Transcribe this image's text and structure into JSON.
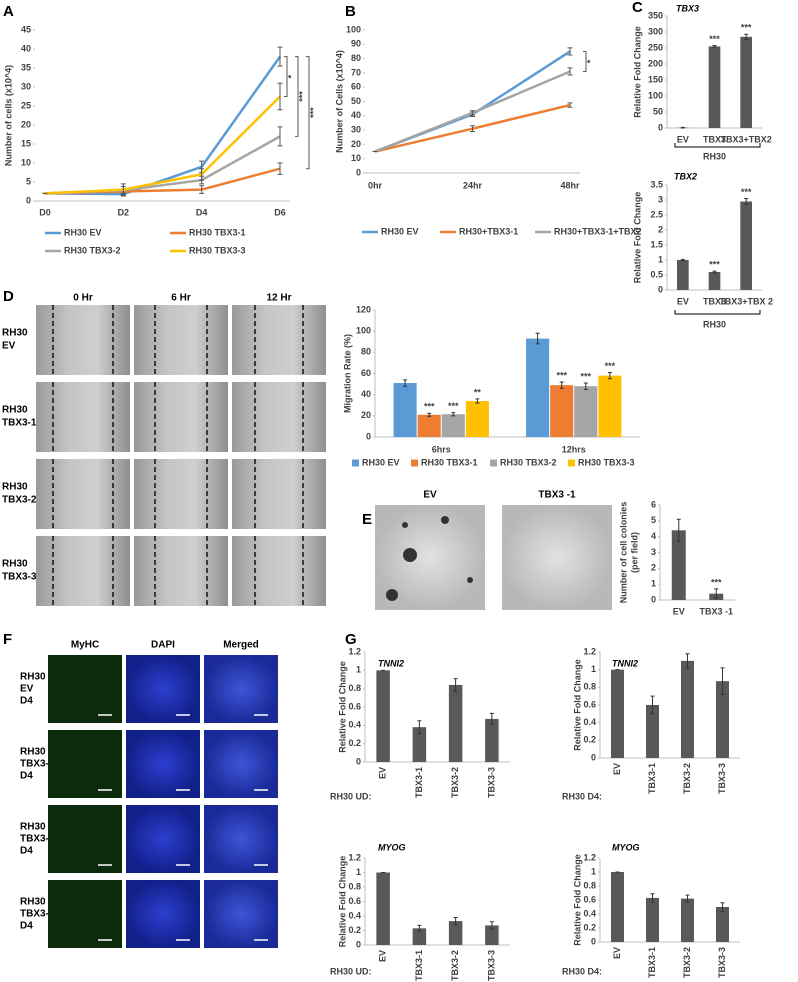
{
  "panel_letters": [
    "A",
    "B",
    "C",
    "D",
    "E",
    "F",
    "G"
  ],
  "scratch_assay": {
    "columns": [
      "0 Hr",
      "6 Hr",
      "12 Hr"
    ],
    "rows": [
      [
        "RH30",
        "EV"
      ],
      [
        "RH30",
        "TBX3-1"
      ],
      [
        "RH30",
        "TBX3-2"
      ],
      [
        "RH30",
        "TBX3-3"
      ]
    ]
  },
  "colony_images": {
    "columns": [
      "EV",
      "TBX3 -1"
    ]
  },
  "immunofluorescence": {
    "columns": [
      "MyHC",
      "DAPI",
      "Merged"
    ],
    "rows": [
      [
        "RH30",
        "EV",
        "D4"
      ],
      [
        "RH30",
        "TBX3-1",
        "D4"
      ],
      [
        "RH30",
        "TBX3-2",
        "D4"
      ],
      [
        "RH30",
        "TBX3-3",
        "D4"
      ]
    ]
  },
  "chart_data": [
    {
      "type": "line",
      "ylabel": "Number of cells (x10^4)",
      "categories": [
        "D0",
        "D2",
        "D4",
        "D6"
      ],
      "series": [
        {
          "name": "RH30 EV",
          "color": "#5b9bd5",
          "values": [
            2,
            1.8,
            9,
            38
          ],
          "errors": [
            0,
            0.5,
            1.5,
            2.5
          ]
        },
        {
          "name": "RH30 TBX3-1",
          "color": "#ed7d31",
          "values": [
            2,
            2.5,
            3,
            8.5
          ],
          "errors": [
            0,
            0.5,
            1,
            1.5
          ]
        },
        {
          "name": "RH30 TBX3-2",
          "color": "#a5a5a5",
          "values": [
            2,
            2.8,
            5.5,
            17
          ],
          "errors": [
            0,
            1,
            1,
            2.5
          ]
        },
        {
          "name": "RH30 TBX3-3",
          "color": "#ffc000",
          "values": [
            2,
            3,
            7,
            27.5
          ],
          "errors": [
            0,
            1.5,
            1.5,
            3.5
          ]
        }
      ],
      "annotations": [
        "*",
        "***",
        "***"
      ],
      "ylim": [
        0,
        45
      ],
      "yticks": [
        0,
        5,
        10,
        15,
        20,
        25,
        30,
        35,
        40,
        45
      ]
    },
    {
      "type": "line",
      "ylabel": "Number of Cells (x10^4)",
      "categories": [
        "0hr",
        "24hr",
        "48hr"
      ],
      "series": [
        {
          "name": "RH30 EV",
          "color": "#5b9bd5",
          "values": [
            15,
            41,
            85
          ],
          "errors": [
            0,
            1.5,
            2.5
          ]
        },
        {
          "name": "RH30+TBX3-1",
          "color": "#ed7d31",
          "values": [
            15,
            31,
            47.5
          ],
          "errors": [
            0,
            2,
            1.5
          ]
        },
        {
          "name": "RH30+TBX3-1+TBX2",
          "color": "#a5a5a5",
          "values": [
            15,
            42,
            71
          ],
          "errors": [
            0,
            1.5,
            2.5
          ]
        }
      ],
      "annotations": [
        "*"
      ],
      "ylim": [
        0,
        100
      ],
      "yticks": [
        0,
        10,
        20,
        30,
        40,
        50,
        60,
        70,
        80,
        90,
        100
      ]
    },
    {
      "type": "bar",
      "title": "TBX3",
      "ylabel": "Relative Fold Change",
      "categories": [
        "EV",
        "TBX3",
        "TBX3+TBX2"
      ],
      "group_label": "RH30",
      "color": "#595959",
      "values": [
        1,
        255,
        285
      ],
      "errors": [
        1,
        3,
        8
      ],
      "annotations": [
        null,
        "***",
        "***"
      ],
      "ylim": [
        0,
        350
      ],
      "yticks": [
        0,
        50,
        100,
        150,
        200,
        250,
        300,
        350
      ]
    },
    {
      "type": "bar",
      "title": "TBX2",
      "ylabel": "Relative Fold Change",
      "categories": [
        "EV",
        "TBX3",
        "TBX3+TBX 2"
      ],
      "group_label": "RH30",
      "color": "#595959",
      "values": [
        1,
        0.6,
        2.95
      ],
      "errors": [
        0.02,
        0.03,
        0.1
      ],
      "annotations": [
        null,
        "***",
        "***"
      ],
      "ylim": [
        0,
        3.5
      ],
      "yticks": [
        0,
        0.5,
        1,
        1.5,
        2,
        2.5,
        3,
        3.5
      ]
    },
    {
      "type": "bar",
      "ylabel": "Migration Rate (%)",
      "categories": [
        "6hrs",
        "12hrs"
      ],
      "series": [
        {
          "name": "RH30 EV",
          "color": "#5b9bd5",
          "values": [
            51,
            93
          ],
          "errors": [
            3,
            5
          ]
        },
        {
          "name": "RH30 TBX3-1",
          "color": "#ed7d31",
          "values": [
            21,
            49
          ],
          "errors": [
            1.5,
            3
          ],
          "annotations": [
            "***",
            "***"
          ]
        },
        {
          "name": "RH30 TBX3-2",
          "color": "#a5a5a5",
          "values": [
            21.5,
            48
          ],
          "errors": [
            1.5,
            3
          ],
          "annotations": [
            "***",
            "***"
          ]
        },
        {
          "name": "RH30 TBX3-3",
          "color": "#ffc000",
          "values": [
            34,
            58
          ],
          "errors": [
            2,
            3
          ],
          "annotations": [
            "**",
            "***"
          ]
        }
      ],
      "ylim": [
        0,
        120
      ],
      "yticks": [
        0,
        20,
        40,
        60,
        80,
        100,
        120
      ]
    },
    {
      "type": "bar",
      "ylabel": [
        "Number of cell colonies",
        "(per field)"
      ],
      "categories": [
        "EV",
        "TBX3 -1"
      ],
      "color": "#595959",
      "values": [
        4.4,
        0.4
      ],
      "errors": [
        0.7,
        0.3
      ],
      "annotations": [
        null,
        "***"
      ],
      "ylim": [
        0,
        6
      ],
      "yticks": [
        0,
        1,
        2,
        3,
        4,
        5,
        6
      ]
    },
    {
      "type": "bar",
      "title": "TNNI2",
      "ylabel": "Relative Fold Change",
      "categories": [
        "EV",
        "TBX3-1",
        "TBX3-2",
        "TBX3-3"
      ],
      "group_label": "RH30 UD:",
      "color": "#595959",
      "values": [
        1,
        0.38,
        0.84,
        0.47
      ],
      "errors": [
        0,
        0.07,
        0.07,
        0.06
      ],
      "ylim": [
        0,
        1.2
      ],
      "yticks": [
        0,
        0.2,
        0.4,
        0.6,
        0.8,
        1,
        1.2
      ]
    },
    {
      "type": "bar",
      "title": "TNNI2",
      "ylabel": "Relative Fold Change",
      "categories": [
        "EV",
        "TBX3-1",
        "TBX3-2",
        "TBX3-3"
      ],
      "group_label": "RH30 D4:",
      "color": "#595959",
      "values": [
        1,
        0.6,
        1.1,
        0.87
      ],
      "errors": [
        0,
        0.1,
        0.08,
        0.15
      ],
      "ylim": [
        0,
        1.2
      ],
      "yticks": [
        0,
        0.2,
        0.4,
        0.6,
        0.8,
        1,
        1.2
      ]
    },
    {
      "type": "bar",
      "title": "MYOG",
      "ylabel": "Relative Fold Change",
      "categories": [
        "EV",
        "TBX3-1",
        "TBX3-2",
        "TBX3-3"
      ],
      "group_label": "RH30 UD:",
      "color": "#595959",
      "values": [
        1,
        0.23,
        0.33,
        0.27
      ],
      "errors": [
        0,
        0.04,
        0.05,
        0.05
      ],
      "ylim": [
        0,
        1.2
      ],
      "yticks": [
        0,
        0.2,
        0.4,
        0.6,
        0.8,
        1,
        1.2
      ]
    },
    {
      "type": "bar",
      "title": "MYOG",
      "ylabel": "Relative Fold Change",
      "categories": [
        "EV",
        "TBX3-1",
        "TBX3-2",
        "TBX3-3"
      ],
      "group_label": "RH30 D4:",
      "color": "#595959",
      "values": [
        1,
        0.63,
        0.62,
        0.5
      ],
      "errors": [
        0,
        0.06,
        0.05,
        0.06
      ],
      "ylim": [
        0,
        1.2
      ],
      "yticks": [
        0,
        0.2,
        0.4,
        0.6,
        0.8,
        1,
        1.2
      ]
    }
  ]
}
